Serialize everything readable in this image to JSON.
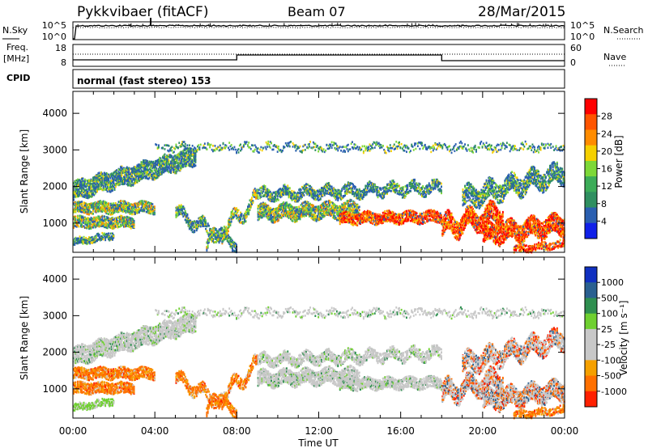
{
  "header": {
    "title": "Pykkvibaer (fitACF)",
    "beam": "Beam 07",
    "date": "28/Mar/2015"
  },
  "status_panels": {
    "nsky_label": "N.Sky",
    "nsearch_label": "N.Search",
    "noise_ticks_left": [
      "10^5",
      "10^0"
    ],
    "noise_ticks_right": [
      "10^5",
      "10^0"
    ],
    "freq_label": "Freq.",
    "freq_unit": "[MHz]",
    "freq_ticks": [
      "18",
      "8"
    ],
    "nave_label": "Nave",
    "nave_ticks": [
      "60",
      "0"
    ],
    "cpid_label": "CPID",
    "cpid_text": "normal (fast stereo) 153"
  },
  "chart_data": [
    {
      "type": "heatmap",
      "panel": "power",
      "ylabel": "Slant Range [km]",
      "yticks": [
        1000,
        2000,
        3000,
        4000
      ],
      "ylim": [
        200,
        4600
      ],
      "xlim": [
        0,
        24
      ],
      "xtick_labels": [
        "00:00",
        "04:00",
        "08:00",
        "12:00",
        "16:00",
        "20:00",
        "00:00"
      ],
      "colorbar_label": "Power [dB]",
      "colorbar_ticks": [
        "28",
        "24",
        "20",
        "16",
        "12",
        "8",
        "4"
      ],
      "colorbar_colors": [
        "#ff0000",
        "#ff5500",
        "#ff8c00",
        "#f5d000",
        "#7dd838",
        "#3cac58",
        "#2f8f60",
        "#2a5fb0",
        "#1020e8"
      ]
    },
    {
      "type": "heatmap",
      "panel": "velocity",
      "ylabel": "Slant Range [km]",
      "yticks": [
        1000,
        2000,
        3000,
        4000
      ],
      "ylim": [
        200,
        4600
      ],
      "xlim": [
        0,
        24
      ],
      "xtick_labels": [
        "00:00",
        "04:00",
        "08:00",
        "12:00",
        "16:00",
        "20:00",
        "00:00"
      ],
      "xlabel": "Time UT",
      "colorbar_label": "Velocity [m s⁻¹]",
      "colorbar_ticks": [
        "1000",
        "500",
        "100",
        "25",
        "-25",
        "-100",
        "-500",
        "-1000"
      ],
      "colorbar_colors": [
        "#1030c0",
        "#2a6090",
        "#2f8f50",
        "#6fd030",
        "#c8c8c8",
        "#c8c8c8",
        "#f5a000",
        "#ff7000",
        "#ff2000"
      ]
    }
  ]
}
